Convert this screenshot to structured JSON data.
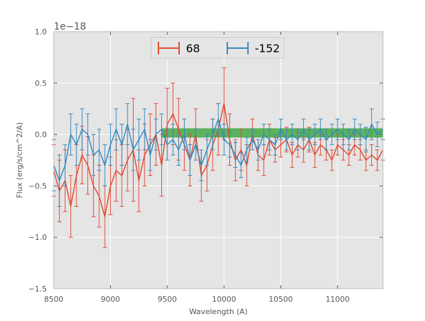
{
  "chart_data": {
    "type": "line",
    "title": "",
    "xlabel": "Wavelength (A)",
    "ylabel": "Flux (erg/s/cm^2/A)",
    "offset_label": "1e−18",
    "xlim": [
      8500,
      11400
    ],
    "ylim": [
      -1.5,
      1.0
    ],
    "xticks": [
      8500,
      9000,
      9500,
      10000,
      10500,
      11000
    ],
    "xtick_labels": [
      "8500",
      "9000",
      "9500",
      "10000",
      "10500",
      "11000"
    ],
    "yticks": [
      -1.5,
      -1.0,
      -0.5,
      0.0,
      0.5,
      1.0
    ],
    "ytick_labels": [
      "−1.5",
      "−1.0",
      "−0.5",
      "0.0",
      "0.5",
      "1.0"
    ],
    "grid": true,
    "legend_position": "top-center",
    "band": {
      "x": [
        9450,
        11400
      ],
      "y": [
        -0.03,
        0.06
      ],
      "color": "#2ca02c"
    },
    "series": [
      {
        "name": "68",
        "color": "#e24a33",
        "x": [
          8500,
          8550,
          8600,
          8650,
          8700,
          8750,
          8800,
          8850,
          8900,
          8950,
          9000,
          9050,
          9100,
          9150,
          9200,
          9250,
          9300,
          9350,
          9400,
          9450,
          9500,
          9550,
          9600,
          9650,
          9700,
          9750,
          9800,
          9850,
          9900,
          9950,
          10000,
          10050,
          10100,
          10150,
          10200,
          10250,
          10300,
          10350,
          10400,
          10450,
          10500,
          10550,
          10600,
          10650,
          10700,
          10750,
          10800,
          10850,
          10900,
          10950,
          11000,
          11050,
          11100,
          11150,
          11200,
          11250,
          11300,
          11350,
          11400
        ],
        "y": [
          -0.35,
          -0.55,
          -0.45,
          -0.7,
          -0.4,
          -0.2,
          -0.3,
          -0.5,
          -0.6,
          -0.8,
          -0.5,
          -0.35,
          -0.4,
          -0.25,
          -0.15,
          -0.45,
          -0.2,
          -0.1,
          0.0,
          -0.3,
          0.1,
          0.2,
          0.05,
          -0.1,
          -0.25,
          0.0,
          -0.4,
          -0.3,
          -0.1,
          0.05,
          0.3,
          -0.05,
          -0.25,
          -0.15,
          -0.3,
          0.0,
          -0.2,
          -0.25,
          -0.05,
          -0.15,
          -0.1,
          -0.05,
          -0.2,
          -0.1,
          -0.15,
          -0.05,
          -0.2,
          -0.1,
          -0.15,
          -0.25,
          -0.1,
          -0.15,
          -0.2,
          -0.1,
          -0.15,
          -0.25,
          -0.2,
          -0.25,
          -0.15
        ],
        "err": [
          0.25,
          0.3,
          0.3,
          0.3,
          0.3,
          0.28,
          0.28,
          0.3,
          0.3,
          0.3,
          0.28,
          0.3,
          0.3,
          0.3,
          0.5,
          0.3,
          0.3,
          0.3,
          0.3,
          0.3,
          0.35,
          0.3,
          0.3,
          0.25,
          0.25,
          0.25,
          0.25,
          0.25,
          0.25,
          0.25,
          0.35,
          0.25,
          0.2,
          0.2,
          0.2,
          0.15,
          0.15,
          0.15,
          0.15,
          0.12,
          0.12,
          0.12,
          0.12,
          0.12,
          0.12,
          0.12,
          0.12,
          0.1,
          0.1,
          0.1,
          0.1,
          0.1,
          0.1,
          0.1,
          0.1,
          0.1,
          0.1,
          0.1,
          0.1
        ]
      },
      {
        "name": "-152",
        "color": "#348abd",
        "x": [
          8500,
          8550,
          8600,
          8650,
          8700,
          8750,
          8800,
          8850,
          8900,
          8950,
          9000,
          9050,
          9100,
          9150,
          9200,
          9250,
          9300,
          9350,
          9400,
          9450,
          9500,
          9550,
          9600,
          9650,
          9700,
          9750,
          9800,
          9850,
          9900,
          9950,
          10000,
          10050,
          10100,
          10150,
          10200,
          10250,
          10300,
          10350,
          10400,
          10450,
          10500,
          10550,
          10600,
          10650,
          10700,
          10750,
          10800,
          10850,
          10900,
          10950,
          11000,
          11050,
          11100,
          11150,
          11200,
          11250,
          11300,
          11350,
          11400
        ],
        "y": [
          -0.3,
          -0.45,
          -0.3,
          0.0,
          -0.1,
          0.05,
          0.0,
          -0.2,
          -0.15,
          -0.3,
          -0.1,
          0.05,
          -0.1,
          0.1,
          -0.15,
          -0.05,
          0.05,
          -0.2,
          0.0,
          0.05,
          -0.1,
          -0.05,
          -0.15,
          0.0,
          -0.25,
          -0.1,
          -0.3,
          -0.15,
          0.0,
          0.15,
          -0.05,
          -0.1,
          -0.2,
          -0.3,
          -0.15,
          -0.05,
          -0.15,
          0.0,
          -0.05,
          -0.1,
          0.05,
          -0.05,
          0.0,
          -0.05,
          0.05,
          -0.05,
          0.0,
          0.05,
          -0.05,
          0.0,
          0.05,
          0.0,
          -0.05,
          0.05,
          0.0,
          -0.05,
          0.1,
          0.0,
          0.05
        ],
        "err": [
          0.25,
          0.25,
          0.2,
          0.2,
          0.2,
          0.2,
          0.2,
          0.2,
          0.2,
          0.2,
          0.2,
          0.2,
          0.2,
          0.2,
          0.2,
          0.2,
          0.2,
          0.15,
          0.15,
          0.15,
          0.15,
          0.15,
          0.15,
          0.15,
          0.15,
          0.15,
          0.15,
          0.15,
          0.15,
          0.15,
          0.15,
          0.12,
          0.12,
          0.12,
          0.12,
          0.1,
          0.1,
          0.1,
          0.1,
          0.1,
          0.1,
          0.1,
          0.1,
          0.1,
          0.1,
          0.1,
          0.1,
          0.1,
          0.1,
          0.1,
          0.1,
          0.1,
          0.1,
          0.1,
          0.1,
          0.12,
          0.15,
          0.12,
          0.1
        ]
      }
    ]
  }
}
